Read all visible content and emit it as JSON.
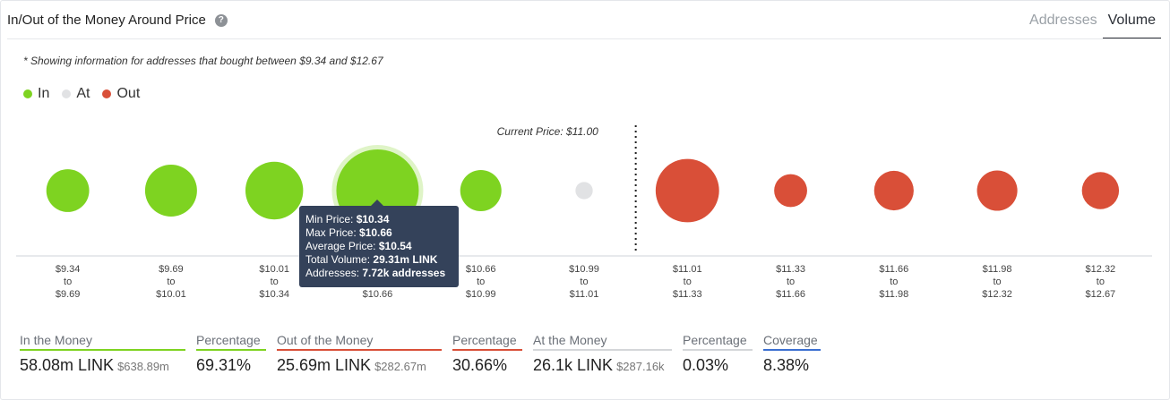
{
  "header": {
    "title": "In/Out of the Money Around Price",
    "tabs": [
      {
        "label": "Addresses",
        "active": false
      },
      {
        "label": "Volume",
        "active": true
      }
    ]
  },
  "note": "* Showing information for addresses that bought between $9.34 and $12.67",
  "legend": [
    {
      "label": "In",
      "color": "#7ed321"
    },
    {
      "label": "At",
      "color": "#e1e2e4"
    },
    {
      "label": "Out",
      "color": "#d94f38"
    }
  ],
  "current_price_label": "Current Price: $11.00",
  "tooltip": {
    "min_label": "Min Price:",
    "min_value": "$10.34",
    "max_label": "Max Price:",
    "max_value": "$10.66",
    "avg_label": "Average Price:",
    "avg_value": "$10.54",
    "vol_label": "Total Volume:",
    "vol_value": "29.31m LINK",
    "addr_label": "Addresses:",
    "addr_value": "7.72k addresses"
  },
  "chart_data": {
    "type": "scatter",
    "categories": [
      {
        "from": "$9.34",
        "to": "$9.69"
      },
      {
        "from": "$9.69",
        "to": "$10.01"
      },
      {
        "from": "$10.01",
        "to": "$10.34"
      },
      {
        "from": "$10.34",
        "to": "$10.66"
      },
      {
        "from": "$10.66",
        "to": "$10.99"
      },
      {
        "from": "$10.99",
        "to": "$11.01"
      },
      {
        "from": "$11.01",
        "to": "$11.33"
      },
      {
        "from": "$11.33",
        "to": "$11.66"
      },
      {
        "from": "$11.66",
        "to": "$11.98"
      },
      {
        "from": "$11.98",
        "to": "$12.32"
      },
      {
        "from": "$12.32",
        "to": "$12.67"
      }
    ],
    "to_word": "to",
    "bubbles": [
      {
        "status": "in",
        "relative_size": 0.52
      },
      {
        "status": "in",
        "relative_size": 0.63
      },
      {
        "status": "in",
        "relative_size": 0.7
      },
      {
        "status": "in",
        "relative_size": 1.0,
        "highlighted": true
      },
      {
        "status": "in",
        "relative_size": 0.5
      },
      {
        "status": "at",
        "relative_size": 0.21
      },
      {
        "status": "out",
        "relative_size": 0.77
      },
      {
        "status": "out",
        "relative_size": 0.4
      },
      {
        "status": "out",
        "relative_size": 0.48
      },
      {
        "status": "out",
        "relative_size": 0.49
      },
      {
        "status": "out",
        "relative_size": 0.45
      }
    ],
    "colors": {
      "in": "#7ed321",
      "at": "#e1e2e4",
      "out": "#d94f38"
    },
    "current_price_between_index": [
      5,
      6
    ]
  },
  "summary": [
    {
      "label": "In the Money",
      "value": "58.08m LINK",
      "sub": "$638.89m",
      "color": "#7ed321"
    },
    {
      "label": "Percentage",
      "value": "69.31%",
      "sub": "",
      "color": "#7ed321"
    },
    {
      "label": "Out of the Money",
      "value": "25.69m LINK",
      "sub": "$282.67m",
      "color": "#d94f38"
    },
    {
      "label": "Percentage",
      "value": "30.66%",
      "sub": "",
      "color": "#d94f38"
    },
    {
      "label": "At the Money",
      "value": "26.1k LINK",
      "sub": "$287.16k",
      "color": "#d4d6d9"
    },
    {
      "label": "Percentage",
      "value": "0.03%",
      "sub": "",
      "color": "#d4d6d9"
    },
    {
      "label": "Coverage",
      "value": "8.38%",
      "sub": "",
      "color": "#3b6fd1"
    }
  ]
}
